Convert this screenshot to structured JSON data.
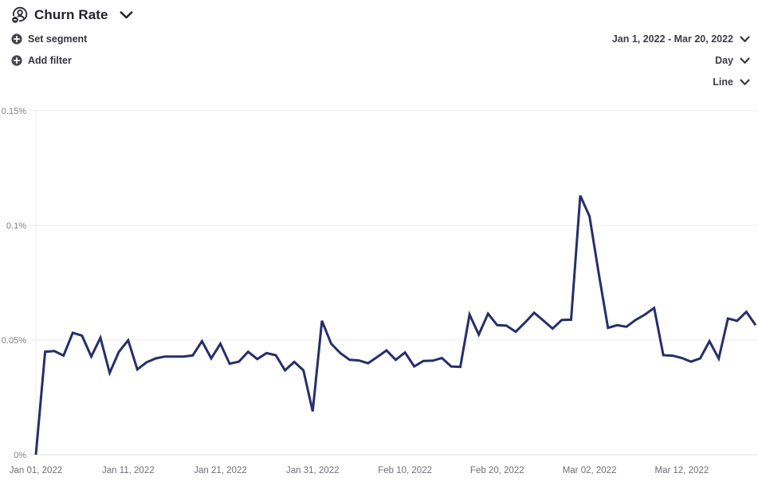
{
  "header": {
    "title": "Churn Rate",
    "set_segment_label": "Set segment",
    "add_filter_label": "Add filter",
    "date_range": "Jan 1, 2022 - Mar 20, 2022",
    "granularity": "Day",
    "chart_type": "Line"
  },
  "colors": {
    "line": "#252f6a",
    "grid": "#ececf0",
    "axis_line": "#e2e2e6",
    "y_label_text": "#7e7e87",
    "x_label_text": "#6e6e77",
    "header_text": "#22222a",
    "control_text": "#3c3c46",
    "icon_fill": "#45454d"
  },
  "chart_data": {
    "type": "line",
    "title": "Churn Rate",
    "xlabel": "",
    "ylabel": "",
    "ylim": [
      0,
      0.15
    ],
    "grid": "horizontal",
    "legend": "none",
    "ytick_values": [
      0,
      0.05,
      0.1,
      0.15
    ],
    "ytick_labels": [
      "0%",
      "0.05%",
      "0.1%",
      "0.15%"
    ],
    "xtick_indices": [
      0,
      10,
      20,
      30,
      40,
      50,
      60,
      70
    ],
    "xtick_labels": [
      "Jan 01, 2022",
      "Jan 11, 2022",
      "Jan 21, 2022",
      "Jan 31, 2022",
      "Feb 10, 2022",
      "Feb 20, 2022",
      "Mar 02, 2022",
      "Mar 12, 2022"
    ],
    "x": [
      "Jan 01, 2022",
      "Jan 02, 2022",
      "Jan 03, 2022",
      "Jan 04, 2022",
      "Jan 05, 2022",
      "Jan 06, 2022",
      "Jan 07, 2022",
      "Jan 08, 2022",
      "Jan 09, 2022",
      "Jan 10, 2022",
      "Jan 11, 2022",
      "Jan 12, 2022",
      "Jan 13, 2022",
      "Jan 14, 2022",
      "Jan 15, 2022",
      "Jan 16, 2022",
      "Jan 17, 2022",
      "Jan 18, 2022",
      "Jan 19, 2022",
      "Jan 20, 2022",
      "Jan 21, 2022",
      "Jan 22, 2022",
      "Jan 23, 2022",
      "Jan 24, 2022",
      "Jan 25, 2022",
      "Jan 26, 2022",
      "Jan 27, 2022",
      "Jan 28, 2022",
      "Jan 29, 2022",
      "Jan 30, 2022",
      "Jan 31, 2022",
      "Feb 01, 2022",
      "Feb 02, 2022",
      "Feb 03, 2022",
      "Feb 04, 2022",
      "Feb 05, 2022",
      "Feb 06, 2022",
      "Feb 07, 2022",
      "Feb 08, 2022",
      "Feb 09, 2022",
      "Feb 10, 2022",
      "Feb 11, 2022",
      "Feb 12, 2022",
      "Feb 13, 2022",
      "Feb 14, 2022",
      "Feb 15, 2022",
      "Feb 16, 2022",
      "Feb 17, 2022",
      "Feb 18, 2022",
      "Feb 19, 2022",
      "Feb 20, 2022",
      "Feb 21, 2022",
      "Feb 22, 2022",
      "Feb 23, 2022",
      "Feb 24, 2022",
      "Feb 25, 2022",
      "Feb 26, 2022",
      "Feb 27, 2022",
      "Feb 28, 2022",
      "Mar 01, 2022",
      "Mar 02, 2022",
      "Mar 03, 2022",
      "Mar 04, 2022",
      "Mar 05, 2022",
      "Mar 06, 2022",
      "Mar 07, 2022",
      "Mar 08, 2022",
      "Mar 09, 2022",
      "Mar 10, 2022",
      "Mar 11, 2022",
      "Mar 12, 2022",
      "Mar 13, 2022",
      "Mar 14, 2022",
      "Mar 15, 2022",
      "Mar 16, 2022",
      "Mar 17, 2022",
      "Mar 18, 2022",
      "Mar 19, 2022",
      "Mar 20, 2022"
    ],
    "series": [
      {
        "name": "Churn Rate (%)",
        "values": [
          0.0,
          0.0449,
          0.0452,
          0.0432,
          0.0532,
          0.0519,
          0.0428,
          0.051,
          0.0357,
          0.0449,
          0.0499,
          0.0372,
          0.0403,
          0.042,
          0.0428,
          0.0428,
          0.0428,
          0.0433,
          0.0495,
          0.042,
          0.0484,
          0.0397,
          0.0406,
          0.0449,
          0.0417,
          0.0443,
          0.0434,
          0.0368,
          0.0405,
          0.0368,
          0.0189,
          0.0584,
          0.0484,
          0.0443,
          0.0414,
          0.0411,
          0.0399,
          0.0426,
          0.0455,
          0.0414,
          0.0446,
          0.0385,
          0.0409,
          0.041,
          0.0422,
          0.0385,
          0.0383,
          0.0611,
          0.0524,
          0.0615,
          0.0565,
          0.0563,
          0.0536,
          0.0576,
          0.0619,
          0.0585,
          0.055,
          0.0588,
          0.0589,
          0.113,
          0.104,
          0.079,
          0.0553,
          0.0565,
          0.0558,
          0.0588,
          0.0611,
          0.064,
          0.0434,
          0.0432,
          0.0422,
          0.0406,
          0.042,
          0.0495,
          0.0419,
          0.0594,
          0.0584,
          0.0623,
          0.0565
        ]
      }
    ]
  }
}
